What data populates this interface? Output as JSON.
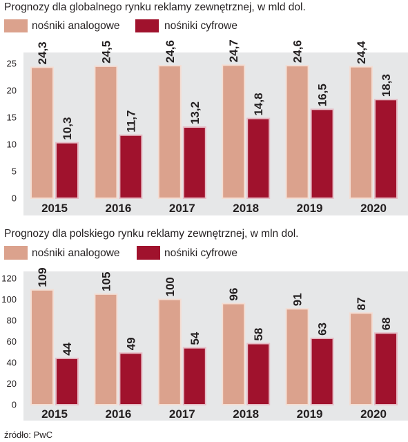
{
  "source": "źródło: PwC",
  "colors": {
    "analog": "#dba28d",
    "analog_stroke": "#f4ddd3",
    "digital": "#a0122d",
    "digital_stroke": "#e6bcc5",
    "panel": "#e6e7e8",
    "text": "#231f20"
  },
  "chart_data": [
    {
      "type": "bar",
      "title": "Prognozy dla globalnego rynku reklamy zewnętrznej, w mld dol.",
      "categories": [
        "2015",
        "2016",
        "2017",
        "2018",
        "2019",
        "2020"
      ],
      "series": [
        {
          "name": "nośniki analogowe",
          "values": [
            24.3,
            24.5,
            24.6,
            24.7,
            24.6,
            24.4
          ],
          "labels": [
            "24,3",
            "24,5",
            "24,6",
            "24,7",
            "24,6",
            "24,4"
          ]
        },
        {
          "name": "nośniki cyfrowe",
          "values": [
            10.3,
            11.7,
            13.2,
            14.8,
            16.5,
            18.3
          ],
          "labels": [
            "10,3",
            "11,7",
            "13,2",
            "14,8",
            "16,5",
            "18,3"
          ]
        }
      ],
      "yticks": [
        0,
        5,
        10,
        15,
        20,
        25
      ],
      "ylim": [
        0,
        25
      ],
      "grid": false,
      "legend": "top-left"
    },
    {
      "type": "bar",
      "title": "Prognozy dla polskiego rynku reklamy zewnętrznej, w mln dol.",
      "categories": [
        "2015",
        "2016",
        "2017",
        "2018",
        "2019",
        "2020"
      ],
      "series": [
        {
          "name": "nośniki analogowe",
          "values": [
            109,
            105,
            100,
            96,
            91,
            87
          ],
          "labels": [
            "109",
            "105",
            "100",
            "96",
            "91",
            "87"
          ]
        },
        {
          "name": "nośniki cyfrowe",
          "values": [
            44,
            49,
            54,
            58,
            63,
            68
          ],
          "labels": [
            "44",
            "49",
            "54",
            "58",
            "63",
            "68"
          ]
        }
      ],
      "yticks": [
        0,
        20,
        40,
        60,
        80,
        100,
        120
      ],
      "ylim": [
        0,
        120
      ],
      "grid": false,
      "legend": "top-left"
    }
  ]
}
